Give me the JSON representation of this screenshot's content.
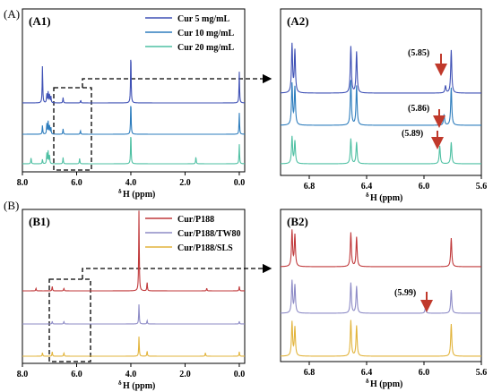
{
  "chart_data": [
    {
      "id": "A1",
      "panel_label": "(A1)",
      "section_label": "(A)",
      "type": "line",
      "xlabel_sup": "δ",
      "xlabel": "H (ppm)",
      "xlim": [
        8.0,
        -0.2
      ],
      "xticks": [
        "8.0",
        "6.0",
        "4.0",
        "2.0",
        "0.0"
      ],
      "tick_values": [
        8.0,
        6.0,
        4.0,
        2.0,
        0.0
      ],
      "legend_position": "top-right",
      "series": [
        {
          "name": "Cur 5 mg/mL",
          "color": "#3f51b5",
          "peaks": [
            [
              7.26,
              42
            ],
            [
              7.1,
              10
            ],
            [
              7.05,
              12
            ],
            [
              7.0,
              10
            ],
            [
              6.95,
              8
            ],
            [
              6.5,
              6
            ],
            [
              5.85,
              3
            ],
            [
              4.0,
              58
            ],
            [
              0.0,
              35
            ]
          ]
        },
        {
          "name": "Cur 10 mg/mL",
          "color": "#2e7dbd",
          "peaks": [
            [
              7.26,
              10
            ],
            [
              7.1,
              12
            ],
            [
              7.05,
              14
            ],
            [
              7.0,
              10
            ],
            [
              6.95,
              8
            ],
            [
              6.5,
              6
            ],
            [
              5.86,
              4
            ],
            [
              4.0,
              38
            ],
            [
              0.0,
              24
            ]
          ]
        },
        {
          "name": "Cur 20 mg/mL",
          "color": "#4fc0a3",
          "peaks": [
            [
              7.68,
              7
            ],
            [
              7.26,
              5
            ],
            [
              7.1,
              12
            ],
            [
              7.05,
              14
            ],
            [
              7.0,
              10
            ],
            [
              6.5,
              7
            ],
            [
              5.89,
              6
            ],
            [
              4.0,
              36
            ],
            [
              1.6,
              8
            ],
            [
              0.0,
              22
            ]
          ]
        }
      ]
    },
    {
      "id": "A2",
      "panel_label": "(A2)",
      "type": "line",
      "xlabel_sup": "δ",
      "xlabel": "H (ppm)",
      "xlim": [
        7.0,
        5.6
      ],
      "xticks": [
        "6.8",
        "6.4",
        "6.0",
        "5.6"
      ],
      "tick_values": [
        6.8,
        6.4,
        6.0,
        5.6
      ],
      "annotations": [
        "(5.85)",
        "(5.86)",
        "(5.89)"
      ],
      "series": [
        {
          "name": "Cur 5 mg/mL",
          "color": "#3f51b5",
          "peaks": [
            [
              6.92,
              54
            ],
            [
              6.9,
              47
            ],
            [
              6.51,
              52
            ],
            [
              6.47,
              46
            ],
            [
              5.85,
              8
            ],
            [
              5.81,
              48
            ]
          ]
        },
        {
          "name": "Cur 10 mg/mL",
          "color": "#2e7dbd",
          "peaks": [
            [
              6.92,
              46
            ],
            [
              6.9,
              42
            ],
            [
              6.51,
              50
            ],
            [
              6.47,
              44
            ],
            [
              5.86,
              12
            ],
            [
              5.81,
              42
            ]
          ]
        },
        {
          "name": "Cur 20 mg/mL",
          "color": "#4fc0a3",
          "peaks": [
            [
              6.92,
              30
            ],
            [
              6.9,
              25
            ],
            [
              6.51,
              28
            ],
            [
              6.47,
              24
            ],
            [
              5.89,
              20
            ],
            [
              5.81,
              24
            ]
          ]
        }
      ]
    },
    {
      "id": "B1",
      "panel_label": "(B1)",
      "section_label": "(B)",
      "type": "line",
      "xlabel_sup": "δ",
      "xlabel": "H (ppm)",
      "xlim": [
        8.0,
        -0.2
      ],
      "xticks": [
        "8.0",
        "6.0",
        "4.0",
        "2.0",
        "0.0"
      ],
      "tick_values": [
        8.0,
        6.0,
        4.0,
        2.0,
        0.0
      ],
      "legend_position": "top-right",
      "series": [
        {
          "name": "Cur/P188",
          "color": "#c0393b",
          "peaks": [
            [
              7.5,
              3
            ],
            [
              6.9,
              5
            ],
            [
              6.47,
              3
            ],
            [
              3.7,
              90
            ],
            [
              3.4,
              10
            ],
            [
              1.2,
              3
            ],
            [
              0.0,
              5
            ]
          ]
        },
        {
          "name": "Cur/P188/TW80",
          "color": "#8d8bc6",
          "peaks": [
            [
              6.9,
              3
            ],
            [
              6.47,
              3
            ],
            [
              3.7,
              22
            ],
            [
              3.4,
              4
            ],
            [
              0.0,
              3
            ]
          ]
        },
        {
          "name": "Cur/P188/SLS",
          "color": "#e2b43c",
          "peaks": [
            [
              7.26,
              4
            ],
            [
              6.9,
              5
            ],
            [
              6.47,
              4
            ],
            [
              3.7,
              22
            ],
            [
              3.4,
              6
            ],
            [
              1.25,
              4
            ],
            [
              0.0,
              5
            ]
          ]
        }
      ]
    },
    {
      "id": "B2",
      "panel_label": "(B2)",
      "type": "line",
      "xlabel_sup": "δ",
      "xlabel": "H (ppm)",
      "xlim": [
        7.0,
        5.6
      ],
      "xticks": [
        "6.8",
        "6.4",
        "6.0",
        "5.6"
      ],
      "tick_values": [
        6.8,
        6.4,
        6.0,
        5.6
      ],
      "annotations": [
        "(5.99)"
      ],
      "series": [
        {
          "name": "Cur/P188",
          "color": "#c0393b",
          "peaks": [
            [
              6.92,
              40
            ],
            [
              6.9,
              35
            ],
            [
              6.51,
              38
            ],
            [
              6.47,
              33
            ],
            [
              5.81,
              32
            ]
          ]
        },
        {
          "name": "Cur/P188/TW80",
          "color": "#8d8bc6",
          "peaks": [
            [
              6.92,
              36
            ],
            [
              6.9,
              31
            ],
            [
              6.51,
              34
            ],
            [
              6.47,
              30
            ],
            [
              5.99,
              6
            ],
            [
              5.81,
              26
            ]
          ]
        },
        {
          "name": "Cur/P188/SLS",
          "color": "#e2b43c",
          "peaks": [
            [
              6.92,
              38
            ],
            [
              6.9,
              32
            ],
            [
              6.51,
              40
            ],
            [
              6.47,
              34
            ],
            [
              5.81,
              36
            ]
          ]
        }
      ]
    }
  ]
}
